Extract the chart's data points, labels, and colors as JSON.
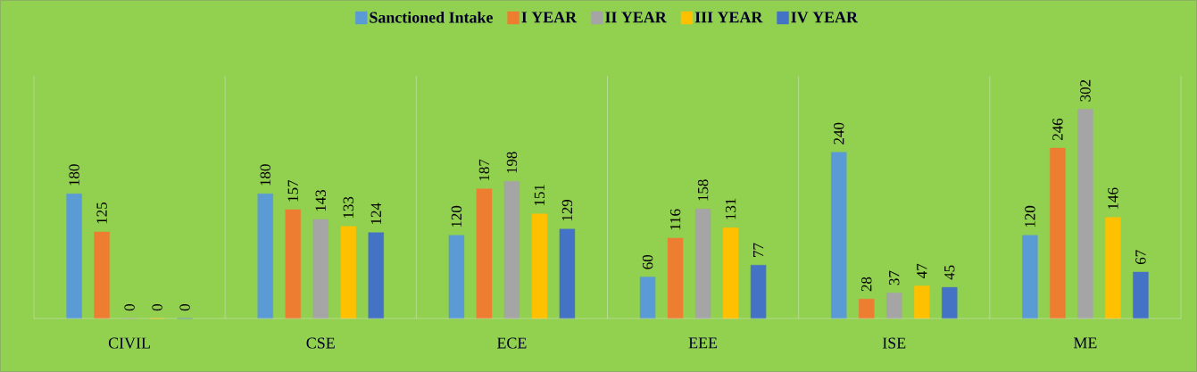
{
  "chart_data": {
    "type": "bar",
    "categories": [
      "CIVIL",
      "CSE",
      "ECE",
      "EEE",
      "ISE",
      "ME"
    ],
    "series": [
      {
        "name": "Sanctioned Intake",
        "color": "#5b9bd5",
        "values": [
          180,
          180,
          120,
          60,
          240,
          120
        ]
      },
      {
        "name": "I YEAR",
        "color": "#ed7d31",
        "values": [
          125,
          157,
          187,
          116,
          28,
          246
        ]
      },
      {
        "name": "II YEAR",
        "color": "#a5a5a5",
        "values": [
          0,
          143,
          198,
          158,
          37,
          302
        ]
      },
      {
        "name": "III YEAR",
        "color": "#ffc000",
        "values": [
          0,
          133,
          151,
          131,
          47,
          146
        ]
      },
      {
        "name": "IV YEAR",
        "color": "#4472c4",
        "values": [
          0,
          124,
          129,
          77,
          45,
          67
        ]
      }
    ],
    "data_labels": true,
    "grid": "x",
    "legend": "top"
  }
}
